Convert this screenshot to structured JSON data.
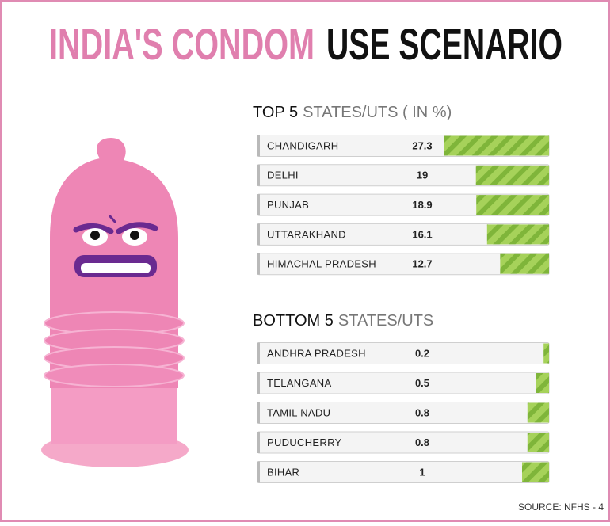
{
  "title_accent": "INDIA'S CONDOM",
  "title": "USE SCENARIO",
  "source": "SOURCE: NFHS - 4",
  "chart_data": [
    {
      "type": "bar",
      "orientation": "horizontal",
      "title_bold": "TOP 5",
      "title": "STATES/UTS  ( IN %)",
      "categories": [
        "CHANDIGARH",
        "DELHI",
        "PUNJAB",
        "UTTARAKHAND",
        "HIMACHAL PRADESH"
      ],
      "values": [
        27.3,
        19,
        18.9,
        16.1,
        12.7
      ],
      "color": "#8cc63f",
      "xlim": [
        0,
        35
      ]
    },
    {
      "type": "bar",
      "orientation": "horizontal",
      "title_bold": "BOTTOM 5",
      "title": "STATES/UTS",
      "categories": [
        "ANDHRA PRADESH",
        "TELANGANA",
        "TAMIL NADU",
        "PUDUCHERRY",
        "BIHAR"
      ],
      "values": [
        0.2,
        0.5,
        0.8,
        0.8,
        1
      ],
      "color": "#8cc63f",
      "xlim": [
        0,
        5
      ]
    }
  ]
}
